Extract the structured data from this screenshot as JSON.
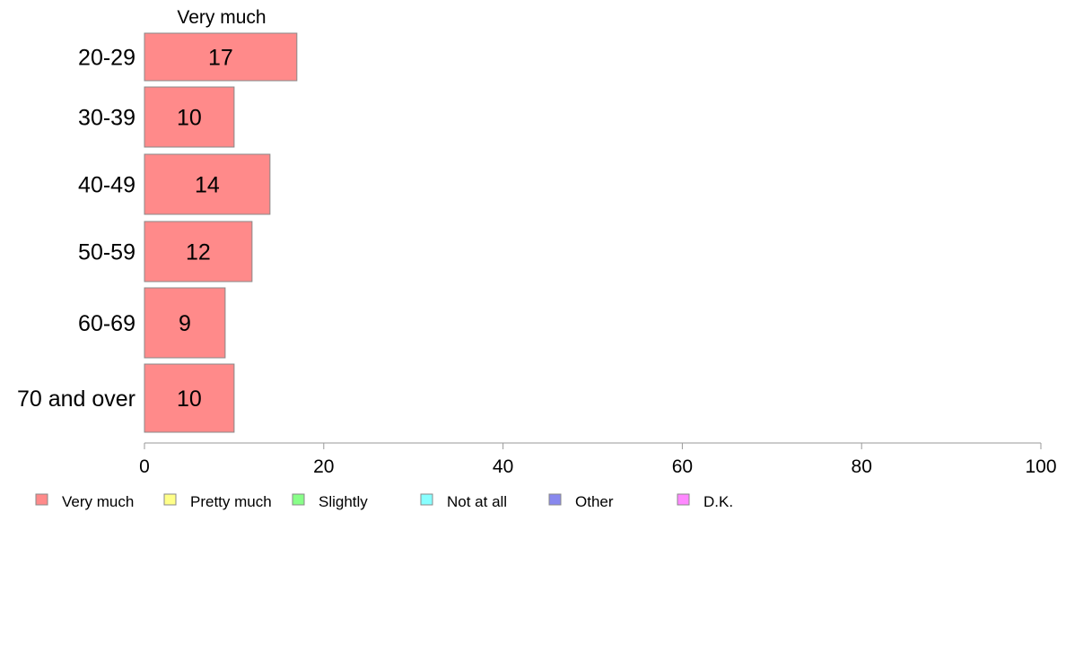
{
  "chart_data": {
    "type": "bar",
    "orientation": "horizontal",
    "series_header": "Very much",
    "categories": [
      "20-29",
      "30-39",
      "40-49",
      "50-59",
      "60-69",
      "70 and over"
    ],
    "series": [
      {
        "name": "Very much",
        "values": [
          17,
          10,
          14,
          12,
          9,
          10
        ],
        "color": "#ff8a8a"
      }
    ],
    "xlim": [
      0,
      100
    ],
    "xticks": [
      0,
      20,
      40,
      60,
      80,
      100
    ],
    "grid": false,
    "legend": {
      "placement": "bottom-left",
      "entries": [
        {
          "label": "Very much",
          "color": "#ff8a8a"
        },
        {
          "label": "Pretty much",
          "color": "#ffff88"
        },
        {
          "label": "Slightly",
          "color": "#88ff88"
        },
        {
          "label": "Not at all",
          "color": "#88ffff"
        },
        {
          "label": "Other",
          "color": "#8888ee"
        },
        {
          "label": "D.K.",
          "color": "#ff88ff"
        }
      ]
    }
  }
}
